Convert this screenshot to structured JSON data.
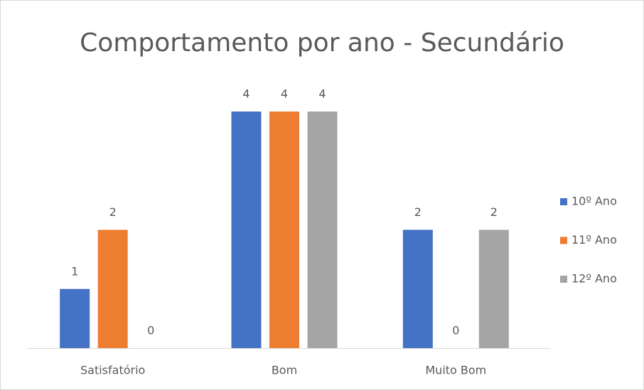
{
  "chart_data": {
    "type": "bar",
    "title": "Comportamento por ano - Secundário",
    "categories": [
      "Satisfatório",
      "Bom",
      "Muito Bom"
    ],
    "series": [
      {
        "name": "10º Ano",
        "color": "#4472c4",
        "values": [
          1,
          4,
          2
        ]
      },
      {
        "name": "11º Ano",
        "color": "#ed7d31",
        "values": [
          2,
          4,
          0
        ]
      },
      {
        "name": "12º Ano",
        "color": "#a5a5a5",
        "values": [
          0,
          4,
          2
        ]
      }
    ],
    "ylim": [
      0,
      4
    ],
    "legend": "right"
  }
}
